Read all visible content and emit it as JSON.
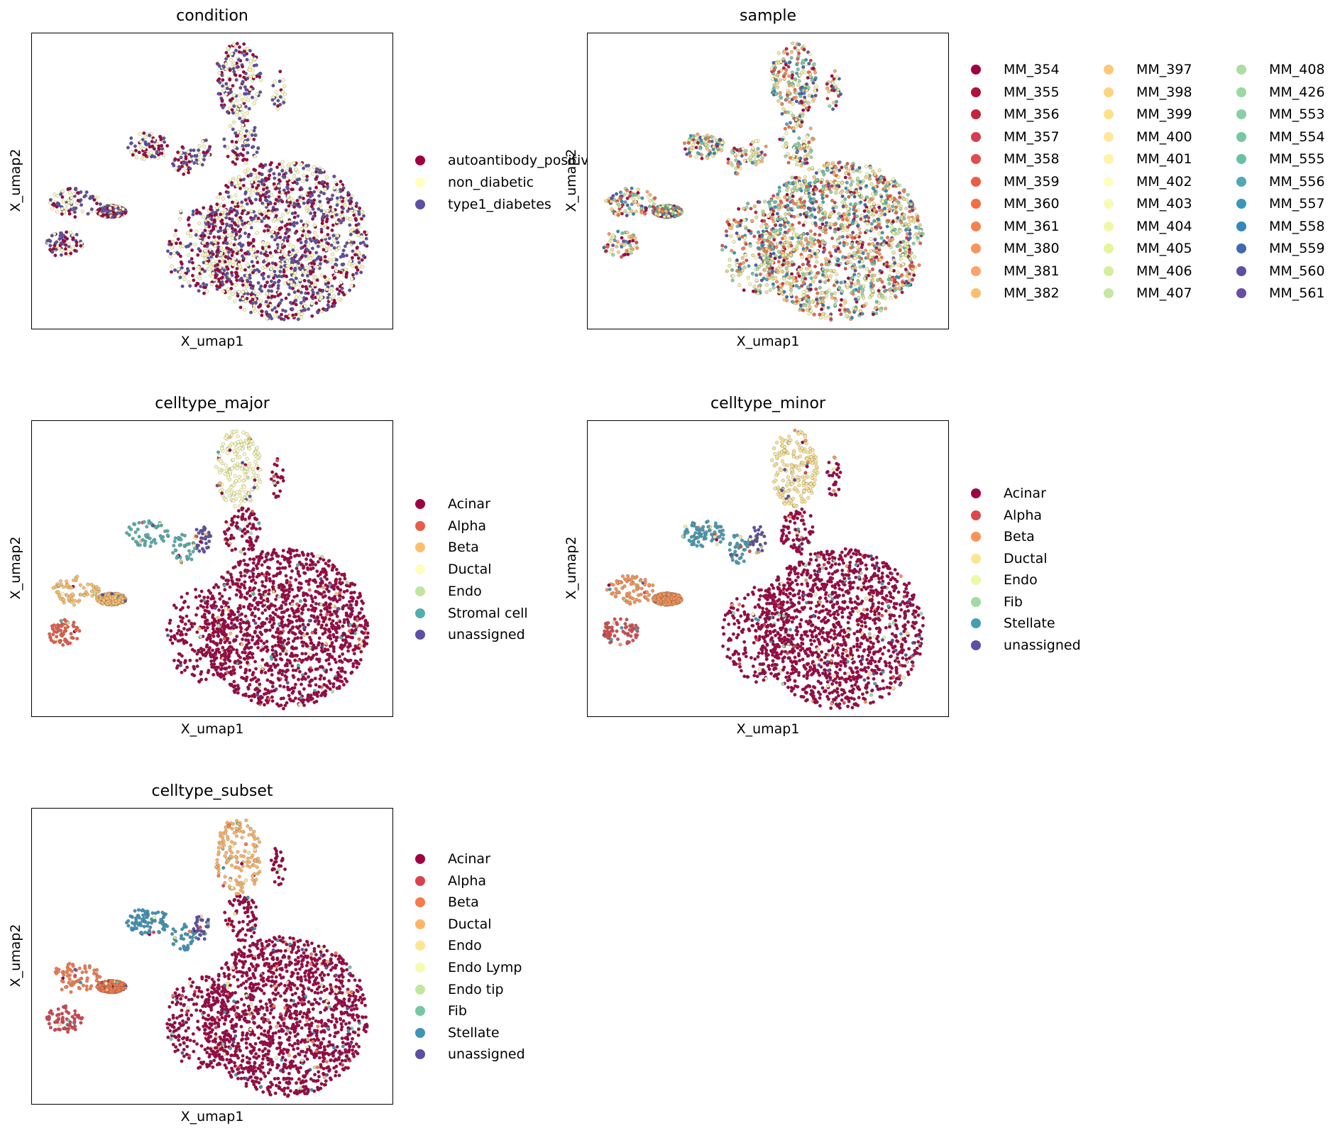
{
  "chart_data": [
    {
      "type": "scatter",
      "title": "condition",
      "xlabel": "X_umap1",
      "ylabel": "X_umap2",
      "legend_placement": "right",
      "categories": [
        "autoantibody_positive",
        "non_diabetic",
        "type1_diabetes"
      ],
      "colors": [
        "#9e0142",
        "#ffffbf",
        "#5e4fa2"
      ]
    },
    {
      "type": "scatter",
      "title": "sample",
      "xlabel": "X_umap1",
      "ylabel": "X_umap2",
      "legend_placement": "right",
      "categories": [
        "MM_354",
        "MM_355",
        "MM_356",
        "MM_357",
        "MM_358",
        "MM_359",
        "MM_360",
        "MM_361",
        "MM_380",
        "MM_381",
        "MM_382",
        "MM_397",
        "MM_398",
        "MM_399",
        "MM_400",
        "MM_401",
        "MM_402",
        "MM_403",
        "MM_404",
        "MM_405",
        "MM_406",
        "MM_407",
        "MM_408",
        "MM_426",
        "MM_553",
        "MM_554",
        "MM_555",
        "MM_556",
        "MM_557",
        "MM_558",
        "MM_559",
        "MM_560",
        "MM_561"
      ],
      "colors": [
        "#9e0142",
        "#b0123f",
        "#c2243c",
        "#d53e4f",
        "#e04d4a",
        "#ea5d47",
        "#f46d43",
        "#f68150",
        "#f8945e",
        "#fba46b",
        "#fdbf6f",
        "#fdc978",
        "#fed481",
        "#fee08b",
        "#fee99a",
        "#fff2a9",
        "#ffffbf",
        "#f7fbb4",
        "#eff8a6",
        "#e6f598",
        "#d5ee9b",
        "#c4e8a0",
        "#abdda4",
        "#9dd7a4",
        "#88cfa4",
        "#75c8a4",
        "#66c2a5",
        "#4fa8b4",
        "#3b97b9",
        "#3288bd",
        "#4169ad",
        "#5e4fa2",
        "#6a4ea5"
      ]
    },
    {
      "type": "scatter",
      "title": "celltype_major",
      "xlabel": "X_umap1",
      "ylabel": "X_umap2",
      "legend_placement": "right",
      "categories": [
        "Acinar",
        "Alpha",
        "Beta",
        "Ductal",
        "Endo",
        "Stromal cell",
        "unassigned"
      ],
      "colors": [
        "#9e0142",
        "#e95c47",
        "#fdbe6e",
        "#fefebd",
        "#c0e5a0",
        "#54aead",
        "#5e4fa2"
      ]
    },
    {
      "type": "scatter",
      "title": "celltype_minor",
      "xlabel": "X_umap1",
      "ylabel": "X_umap2",
      "legend_placement": "right",
      "categories": [
        "Acinar",
        "Alpha",
        "Beta",
        "Ductal",
        "Endo",
        "Fib",
        "Stellate",
        "unassigned"
      ],
      "colors": [
        "#9e0142",
        "#dc494c",
        "#f99355",
        "#fee593",
        "#eff8a6",
        "#a2d9a4",
        "#479db4",
        "#5e4fa2"
      ]
    },
    {
      "type": "scatter",
      "title": "celltype_subset",
      "xlabel": "X_umap1",
      "ylabel": "X_umap2",
      "legend_placement": "right",
      "categories": [
        "Acinar",
        "Alpha",
        "Beta",
        "Ductal",
        "Endo",
        "Endo Lymp",
        "Endo tip",
        "Fib",
        "Stellate",
        "unassigned"
      ],
      "colors": [
        "#9e0142",
        "#d8434e",
        "#f67b4a",
        "#feb466",
        "#fee593",
        "#f5fbaf",
        "#c3e69f",
        "#75c7a5",
        "#3f95b7",
        "#5e4fa2"
      ]
    }
  ]
}
